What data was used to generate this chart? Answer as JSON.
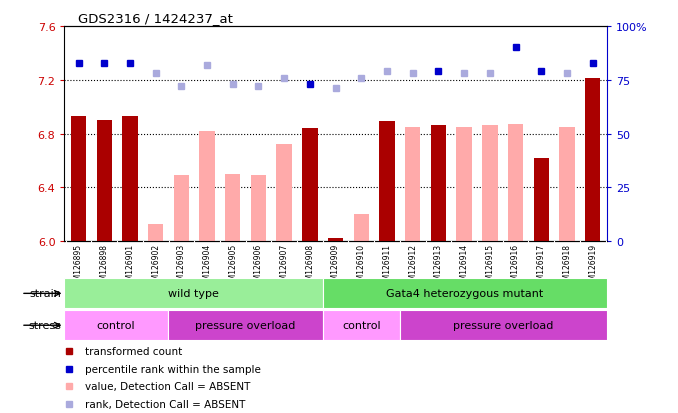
{
  "title": "GDS2316 / 1424237_at",
  "samples": [
    "GSM126895",
    "GSM126898",
    "GSM126901",
    "GSM126902",
    "GSM126903",
    "GSM126904",
    "GSM126905",
    "GSM126906",
    "GSM126907",
    "GSM126908",
    "GSM126909",
    "GSM126910",
    "GSM126911",
    "GSM126912",
    "GSM126913",
    "GSM126914",
    "GSM126915",
    "GSM126916",
    "GSM126917",
    "GSM126918",
    "GSM126919"
  ],
  "bar_values": [
    6.93,
    6.9,
    6.93,
    6.13,
    6.49,
    6.82,
    6.5,
    6.49,
    6.72,
    6.84,
    6.02,
    6.2,
    6.89,
    6.85,
    6.86,
    6.85,
    6.86,
    6.87,
    6.62,
    6.85,
    7.21
  ],
  "bar_absent": [
    false,
    false,
    false,
    true,
    true,
    true,
    true,
    true,
    true,
    false,
    false,
    true,
    false,
    true,
    false,
    true,
    true,
    true,
    false,
    true,
    false
  ],
  "rank_values": [
    83,
    83,
    83,
    78,
    72,
    82,
    73,
    72,
    76,
    73,
    71,
    76,
    79,
    78,
    79,
    78,
    78,
    90,
    79,
    78,
    83
  ],
  "rank_absent": [
    false,
    false,
    false,
    true,
    true,
    true,
    true,
    true,
    true,
    false,
    true,
    true,
    true,
    true,
    false,
    true,
    true,
    false,
    false,
    true,
    false
  ],
  "ylim_left": [
    6.0,
    7.6
  ],
  "ylim_right": [
    0,
    100
  ],
  "yticks_left": [
    6.0,
    6.4,
    6.8,
    7.2,
    7.6
  ],
  "yticks_right": [
    0,
    25,
    50,
    75,
    100
  ],
  "bar_color_present": "#aa0000",
  "bar_color_absent": "#ffaaaa",
  "rank_color_present": "#0000cc",
  "rank_color_absent": "#aaaadd",
  "right_axis_color": "#0000cc",
  "grid_dotted_values": [
    6.4,
    6.8,
    7.2
  ],
  "legend_items": [
    {
      "label": "transformed count",
      "color": "#aa0000",
      "marker": "s"
    },
    {
      "label": "percentile rank within the sample",
      "color": "#0000cc",
      "marker": "s"
    },
    {
      "label": "value, Detection Call = ABSENT",
      "color": "#ffaaaa",
      "marker": "s"
    },
    {
      "label": "rank, Detection Call = ABSENT",
      "color": "#aaaadd",
      "marker": "s"
    }
  ],
  "strain_groups": [
    {
      "label": "wild type",
      "start": 0,
      "end": 10,
      "color": "#99ee99"
    },
    {
      "label": "Gata4 heterozygous mutant",
      "start": 10,
      "end": 21,
      "color": "#66dd66"
    }
  ],
  "stress_groups": [
    {
      "label": "control",
      "start": 0,
      "end": 4,
      "color": "#ff99ff"
    },
    {
      "label": "pressure overload",
      "start": 4,
      "end": 10,
      "color": "#cc44cc"
    },
    {
      "label": "control",
      "start": 10,
      "end": 13,
      "color": "#ff99ff"
    },
    {
      "label": "pressure overload",
      "start": 13,
      "end": 21,
      "color": "#cc44cc"
    }
  ]
}
